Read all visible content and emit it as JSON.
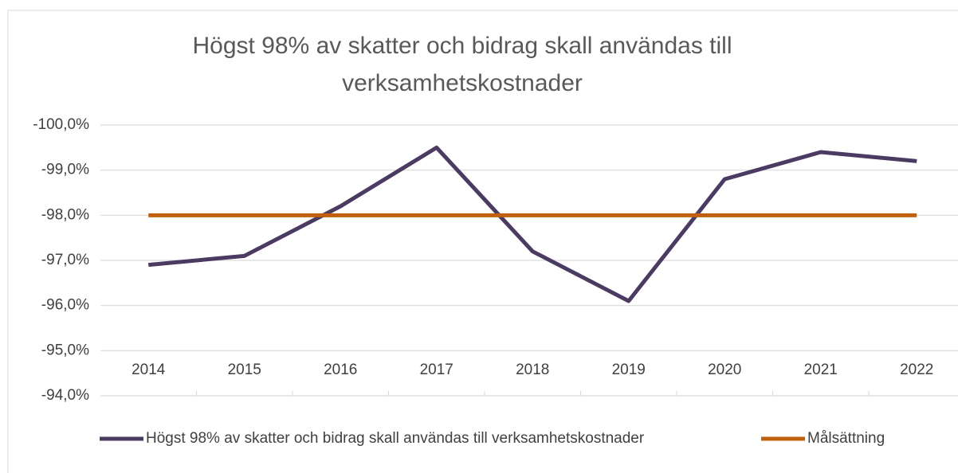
{
  "chart_data": {
    "type": "line",
    "title": "Högst 98% av skatter och bidrag skall användas till verksamhetskostnader",
    "categories": [
      "2014",
      "2015",
      "2016",
      "2017",
      "2018",
      "2019",
      "2020",
      "2021",
      "2022"
    ],
    "series": [
      {
        "name": "Högst 98% av skatter och bidrag skall användas till verksamhetskostnader",
        "color": "#4b3a62",
        "values": [
          -96.9,
          -97.1,
          -98.2,
          -99.5,
          -97.2,
          -96.1,
          -98.8,
          -99.4,
          -99.2
        ]
      },
      {
        "name": "Målsättning",
        "color": "#c0600c",
        "values": [
          -98,
          -98,
          -98,
          -98,
          -98,
          -98,
          -98,
          -98,
          -98
        ]
      }
    ],
    "ylim": [
      -100,
      -94
    ],
    "y_inverted": true,
    "yticks": [
      {
        "value": -100,
        "label": "-100,0%"
      },
      {
        "value": -99,
        "label": "-99,0%"
      },
      {
        "value": -98,
        "label": "-98,0%"
      },
      {
        "value": -97,
        "label": "-97,0%"
      },
      {
        "value": -96,
        "label": "-96,0%"
      },
      {
        "value": -95,
        "label": "-95,0%"
      },
      {
        "value": -94,
        "label": "-94,0%"
      }
    ],
    "grid": true,
    "legend": "bottom"
  }
}
